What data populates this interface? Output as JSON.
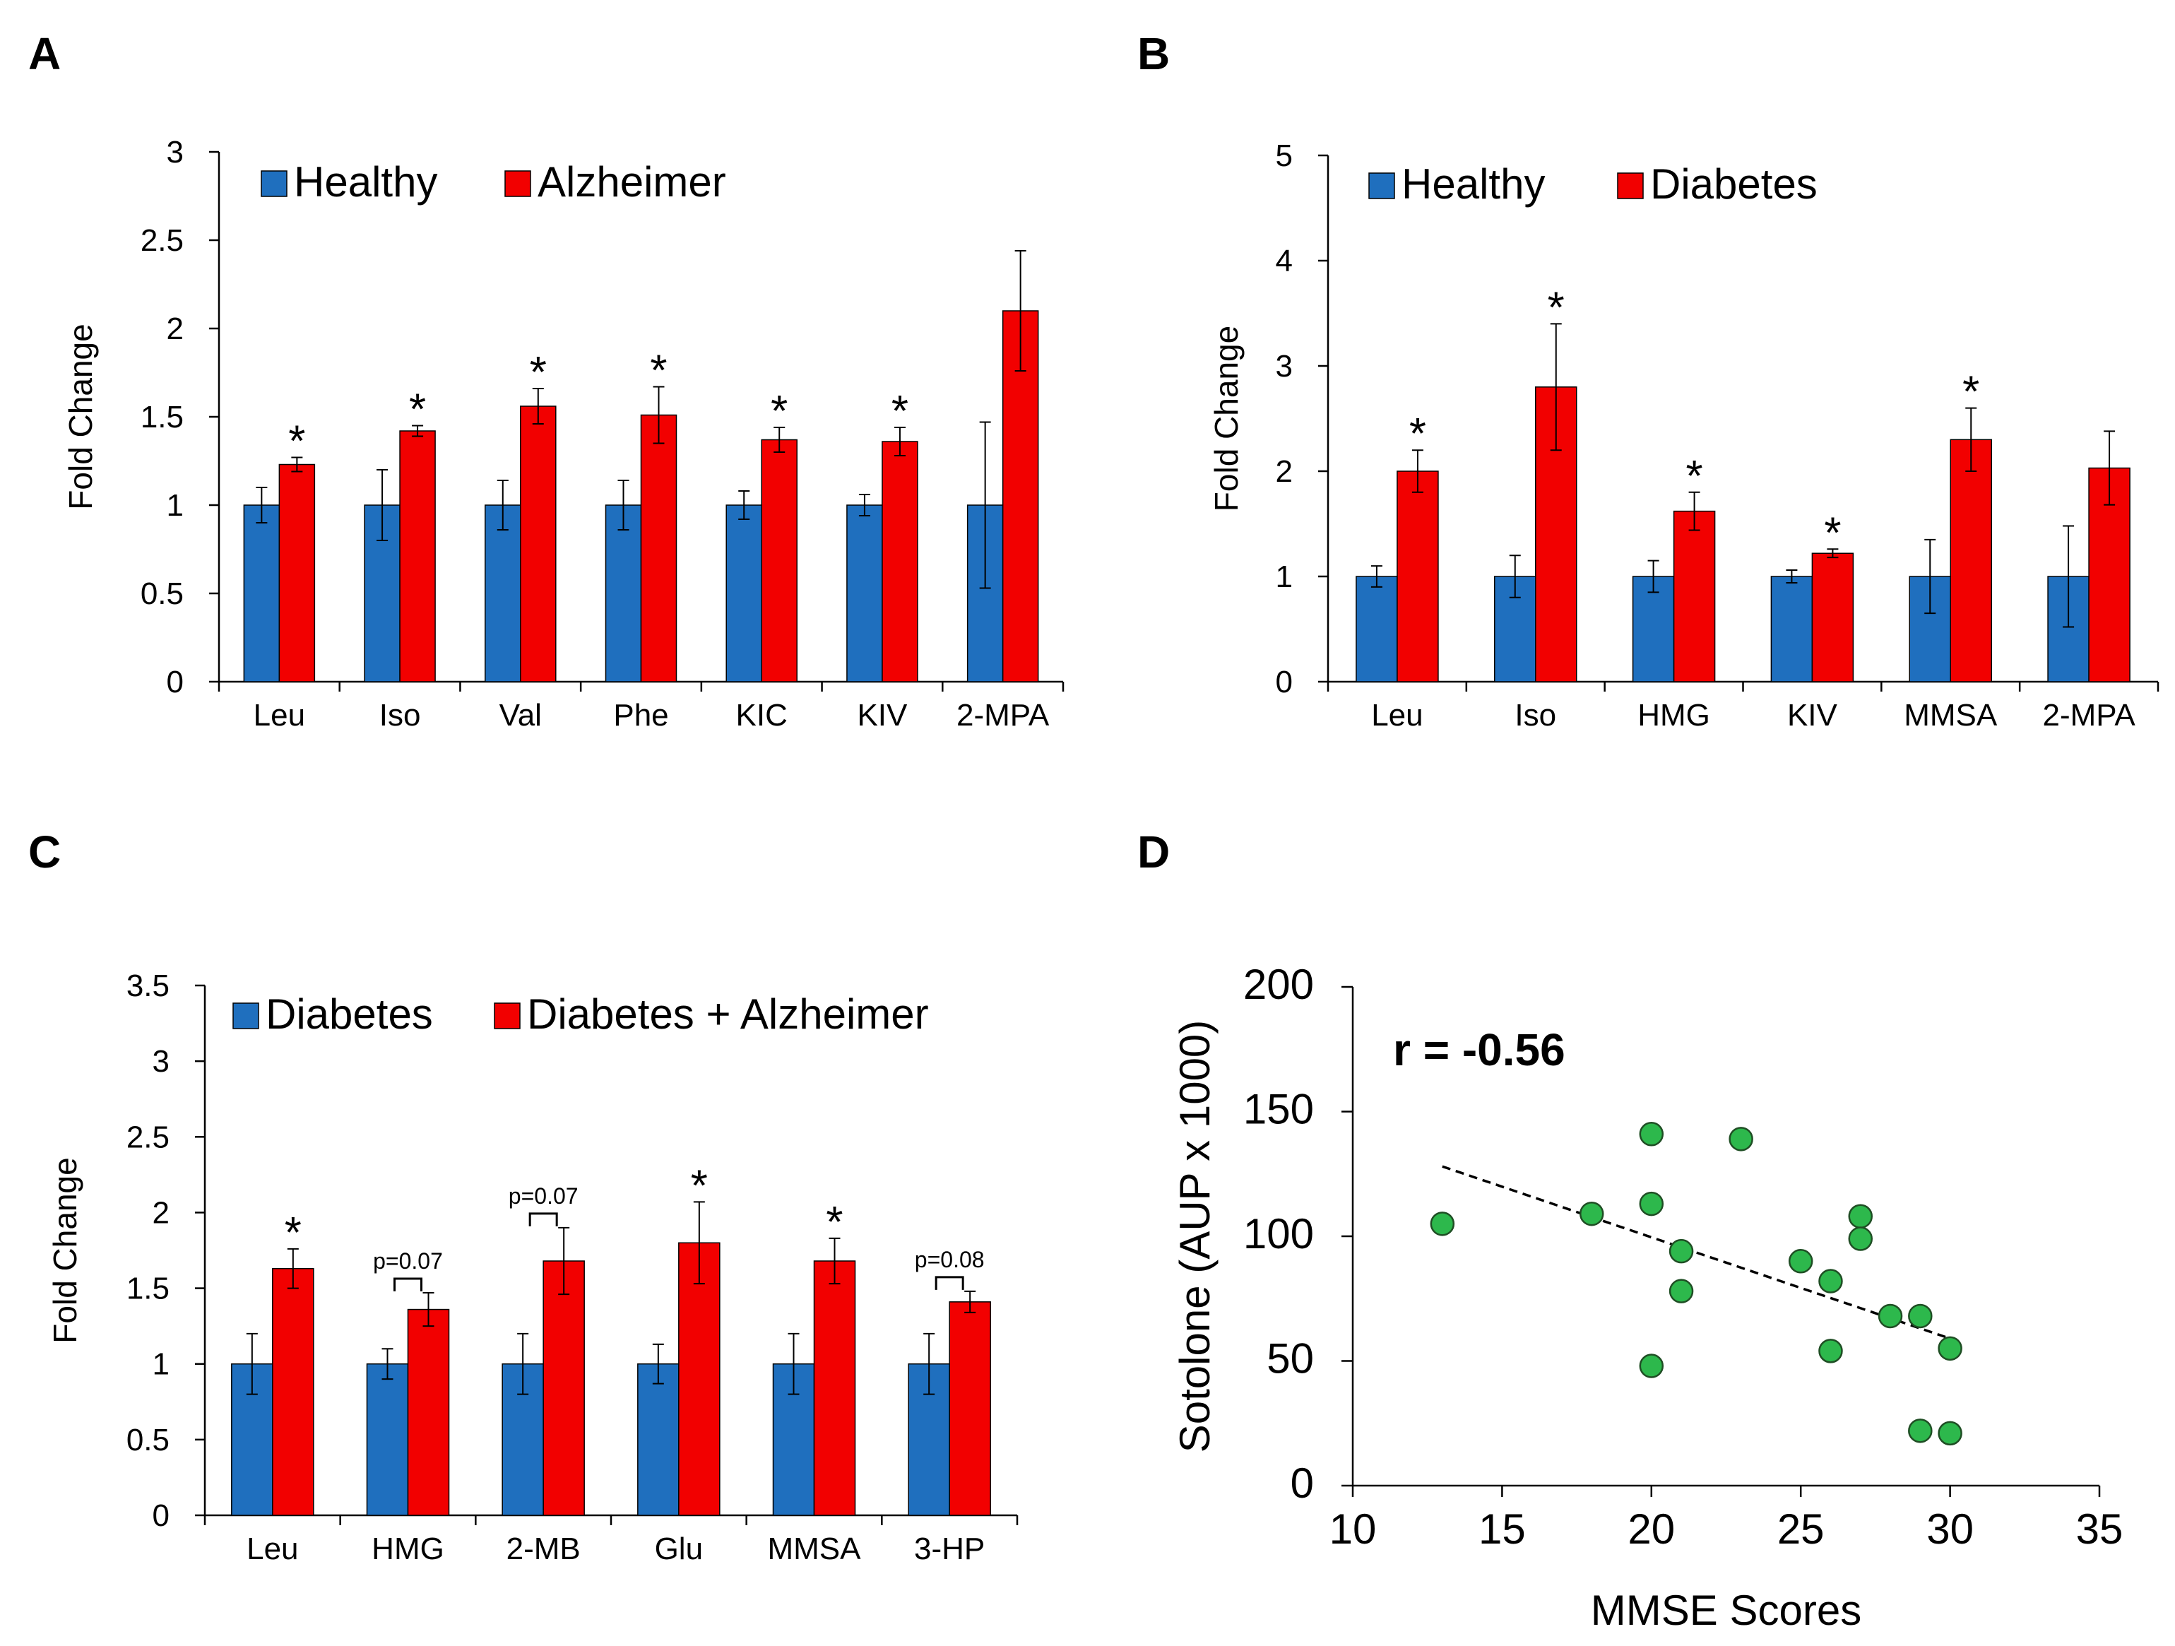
{
  "colors": {
    "primary": "#1F6FBE",
    "secondary": "#F20000",
    "scatter_fill": "#2DB84C",
    "scatter_stroke": "#1F4E24",
    "axis": "#000000"
  },
  "chart_data": [
    {
      "panel": "A",
      "type": "bar",
      "ylabel": "Fold Change",
      "ylim": [
        0,
        3
      ],
      "yticks": [
        "0",
        "0.5",
        "1",
        "1.5",
        "2",
        "2.5",
        "3"
      ],
      "categories": [
        "Leu",
        "Iso",
        "Val",
        "Phe",
        "KIC",
        "KIV",
        "2-MPA"
      ],
      "series": [
        {
          "name": "Healthy",
          "values": [
            1,
            1,
            1,
            1,
            1,
            1,
            1
          ],
          "errors": [
            0.1,
            0.2,
            0.14,
            0.14,
            0.08,
            0.06,
            0.47
          ]
        },
        {
          "name": "Alzheimer",
          "values": [
            1.23,
            1.42,
            1.56,
            1.51,
            1.37,
            1.36,
            2.1
          ],
          "errors": [
            0.04,
            0.03,
            0.1,
            0.16,
            0.07,
            0.08,
            0.34
          ]
        }
      ],
      "annotations": [
        {
          "category": "Leu",
          "text": "*"
        },
        {
          "category": "Iso",
          "text": "*"
        },
        {
          "category": "Val",
          "text": "*"
        },
        {
          "category": "Phe",
          "text": "*"
        },
        {
          "category": "KIC",
          "text": "*"
        },
        {
          "category": "KIV",
          "text": "*"
        }
      ],
      "legend": "top-left"
    },
    {
      "panel": "B",
      "type": "bar",
      "ylabel": "Fold Change",
      "ylim": [
        0,
        5
      ],
      "yticks": [
        "0",
        "1",
        "2",
        "3",
        "4",
        "5"
      ],
      "categories": [
        "Leu",
        "Iso",
        "HMG",
        "KIV",
        "MMSA",
        "2-MPA"
      ],
      "series": [
        {
          "name": "Healthy",
          "values": [
            1,
            1,
            1,
            1,
            1,
            1
          ],
          "errors": [
            0.1,
            0.2,
            0.15,
            0.06,
            0.35,
            0.48
          ]
        },
        {
          "name": "Diabetes",
          "values": [
            2.0,
            2.8,
            1.62,
            1.22,
            2.3,
            2.03
          ],
          "errors": [
            0.2,
            0.6,
            0.18,
            0.04,
            0.3,
            0.35
          ]
        }
      ],
      "annotations": [
        {
          "category": "Leu",
          "text": "*"
        },
        {
          "category": "Iso",
          "text": "*"
        },
        {
          "category": "HMG",
          "text": "*"
        },
        {
          "category": "KIV",
          "text": "*"
        },
        {
          "category": "MMSA",
          "text": "*"
        }
      ],
      "legend": "top-left"
    },
    {
      "panel": "C",
      "type": "bar",
      "ylabel": "Fold Change",
      "ylim": [
        0,
        3.5
      ],
      "yticks": [
        "0",
        "0.5",
        "1",
        "1.5",
        "2",
        "2.5",
        "3",
        "3.5"
      ],
      "categories": [
        "Leu",
        "HMG",
        "2-MB",
        "Glu",
        "MMSA",
        "3-HP"
      ],
      "series": [
        {
          "name": "Diabetes",
          "values": [
            1,
            1,
            1,
            1,
            1,
            1
          ],
          "errors": [
            0.2,
            0.1,
            0.2,
            0.13,
            0.2,
            0.2
          ]
        },
        {
          "name": "Diabetes + Alzheimer",
          "values": [
            1.63,
            1.36,
            1.68,
            1.8,
            1.68,
            1.41
          ],
          "errors": [
            0.13,
            0.11,
            0.22,
            0.27,
            0.15,
            0.07
          ]
        }
      ],
      "annotations": [
        {
          "category": "Leu",
          "text": "*"
        },
        {
          "category": "HMG",
          "text": "p=0.07"
        },
        {
          "category": "2-MB",
          "text": "p=0.07"
        },
        {
          "category": "Glu",
          "text": "*"
        },
        {
          "category": "MMSA",
          "text": "*"
        },
        {
          "category": "3-HP",
          "text": "p=0.08"
        }
      ],
      "legend": "top-left"
    },
    {
      "panel": "D",
      "type": "scatter",
      "xlabel": "MMSE Scores",
      "ylabel": "Sotolone (AUP x 1000)",
      "xlim": [
        10,
        35
      ],
      "ylim": [
        0,
        200
      ],
      "xticks": [
        "10",
        "15",
        "20",
        "25",
        "30",
        "35"
      ],
      "yticks": [
        "0",
        "50",
        "100",
        "150",
        "200"
      ],
      "points": [
        {
          "x": 13,
          "y": 105
        },
        {
          "x": 18,
          "y": 109
        },
        {
          "x": 20,
          "y": 141
        },
        {
          "x": 20,
          "y": 113
        },
        {
          "x": 20,
          "y": 48
        },
        {
          "x": 21,
          "y": 94
        },
        {
          "x": 21,
          "y": 78
        },
        {
          "x": 23,
          "y": 139
        },
        {
          "x": 25,
          "y": 90
        },
        {
          "x": 26,
          "y": 82
        },
        {
          "x": 26,
          "y": 54
        },
        {
          "x": 27,
          "y": 108
        },
        {
          "x": 27,
          "y": 99
        },
        {
          "x": 28,
          "y": 68
        },
        {
          "x": 29,
          "y": 68
        },
        {
          "x": 29,
          "y": 22
        },
        {
          "x": 30,
          "y": 55
        },
        {
          "x": 30,
          "y": 21
        }
      ],
      "trendline": {
        "style": "dashed",
        "x": [
          13,
          30
        ],
        "y": [
          128,
          59
        ]
      },
      "annotation": "r = -0.56"
    }
  ]
}
